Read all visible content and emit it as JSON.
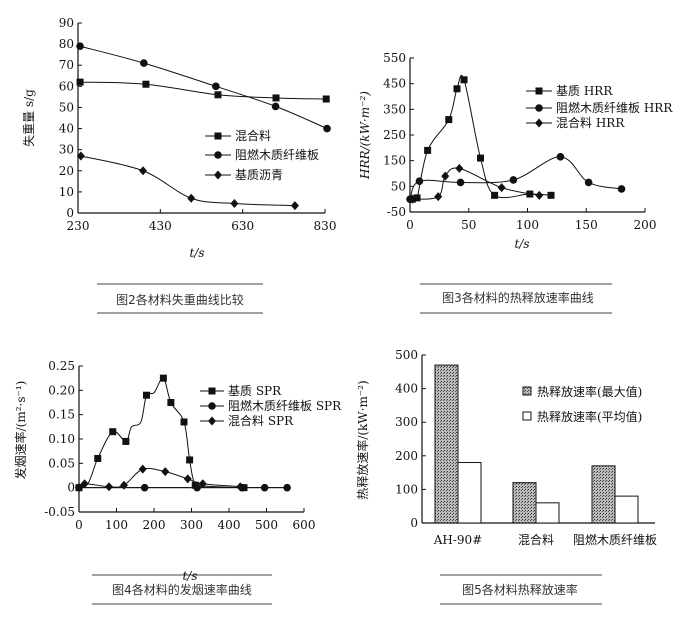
{
  "chart_data": [
    {
      "type": "line",
      "caption": "图2各材料失重曲线比较",
      "xlabel": "t/s",
      "ylabel": "失重量 s/g",
      "xlim": [
        230,
        830
      ],
      "ylim": [
        0,
        90
      ],
      "xticks": [
        230,
        430,
        630,
        830
      ],
      "yticks": [
        0,
        10,
        20,
        30,
        40,
        50,
        60,
        70,
        80,
        90
      ],
      "grid": false,
      "legend": "center-right",
      "series": [
        {
          "name": "混合料",
          "marker": "square",
          "x": [
            235,
            395,
            570,
            711,
            833
          ],
          "y": [
            62,
            61,
            56,
            54.5,
            54
          ]
        },
        {
          "name": "阻燃木质纤维板",
          "marker": "circle",
          "x": [
            235,
            390,
            565,
            710,
            835
          ],
          "y": [
            79,
            71,
            60,
            50.5,
            40
          ]
        },
        {
          "name": "基质沥青",
          "marker": "diamond",
          "x": [
            237,
            388,
            505,
            610,
            757
          ],
          "y": [
            27,
            20,
            7,
            4.5,
            3.5
          ]
        }
      ]
    },
    {
      "type": "line",
      "caption": "图3各材料的热释放速率曲线",
      "xlabel": "t/s",
      "ylabel": "HRR/(kW·m⁻²)",
      "xlim": [
        0,
        200
      ],
      "ylim": [
        -50,
        550
      ],
      "xticks": [
        0,
        50,
        100,
        150,
        200
      ],
      "yticks": [
        -50,
        50,
        150,
        250,
        350,
        450,
        550
      ],
      "grid": false,
      "legend": "top-right",
      "series": [
        {
          "name": "基质 HRR",
          "marker": "square",
          "x": [
            2,
            6,
            15,
            33,
            40,
            46,
            60,
            72,
            102,
            120
          ],
          "y": [
            0,
            5,
            190,
            310,
            430,
            465,
            160,
            15,
            20,
            15
          ]
        },
        {
          "name": "阻燃木质纤维板 HRR",
          "marker": "circle",
          "x": [
            0,
            8,
            43,
            88,
            128,
            152,
            180
          ],
          "y": [
            0,
            70,
            65,
            75,
            165,
            65,
            40
          ]
        },
        {
          "name": "混合料 HRR",
          "marker": "diamond",
          "x": [
            2,
            24,
            30,
            42,
            78,
            110
          ],
          "y": [
            0,
            10,
            90,
            120,
            45,
            15
          ]
        }
      ]
    },
    {
      "type": "line",
      "caption": "图4各材料的发烟速率曲线",
      "xlabel": "t/s",
      "ylabel": "发烟速率/(m²·s⁻¹)",
      "xlim": [
        0,
        600
      ],
      "ylim": [
        -0.05,
        0.25
      ],
      "xticks": [
        0,
        100,
        200,
        300,
        400,
        500,
        600
      ],
      "yticks": [
        -0.05,
        0,
        0.05,
        0.1,
        0.15,
        0.2,
        0.25
      ],
      "ytick_labels": [
        "-0.05",
        "0",
        "0.05",
        "0.10",
        "0.15",
        "0.20",
        "0.25"
      ],
      "grid": false,
      "legend": "top-right",
      "series": [
        {
          "name": "基质 SPR",
          "marker": "square",
          "x": [
            0,
            25,
            50,
            90,
            125,
            140,
            165,
            180,
            200,
            225,
            245,
            280,
            295,
            310,
            340,
            425,
            440
          ],
          "y": [
            0,
            0.01,
            0.06,
            0.115,
            0.095,
            0.125,
            0.135,
            0.19,
            0.195,
            0.225,
            0.175,
            0.135,
            0.057,
            0.005,
            0.003,
            0,
            0
          ]
        },
        {
          "name": "阻燃木质纤维板 SPR",
          "marker": "circle",
          "x": [
            0,
            175,
            315,
            435,
            495,
            555
          ],
          "y": [
            0,
            0,
            0,
            0,
            0,
            0
          ]
        },
        {
          "name": "混合料 SPR",
          "marker": "diamond",
          "x": [
            0,
            15,
            80,
            120,
            170,
            230,
            290,
            330,
            430
          ],
          "y": [
            0,
            0.008,
            0.002,
            0.005,
            0.038,
            0.033,
            0.018,
            0.008,
            0.002
          ]
        }
      ]
    },
    {
      "type": "bar",
      "caption": "图5各材料热释放速率",
      "ylabel": "热释放速率/(kW·m⁻²)",
      "ylim": [
        0,
        500
      ],
      "yticks": [
        0,
        100,
        200,
        300,
        400,
        500
      ],
      "categories": [
        "AH-90#",
        "混合料",
        "阻燃木质纤维板"
      ],
      "grid": false,
      "legend": "top-right",
      "series": [
        {
          "name": "热释放速率(最大值)",
          "fill": "hatched",
          "values": [
            470,
            120,
            170
          ]
        },
        {
          "name": "热释放速率(平均值)",
          "fill": "white",
          "values": [
            180,
            60,
            80
          ]
        }
      ]
    }
  ],
  "colors": {
    "ink": "#111111",
    "caption": "#333333",
    "hatch": "#555555"
  }
}
